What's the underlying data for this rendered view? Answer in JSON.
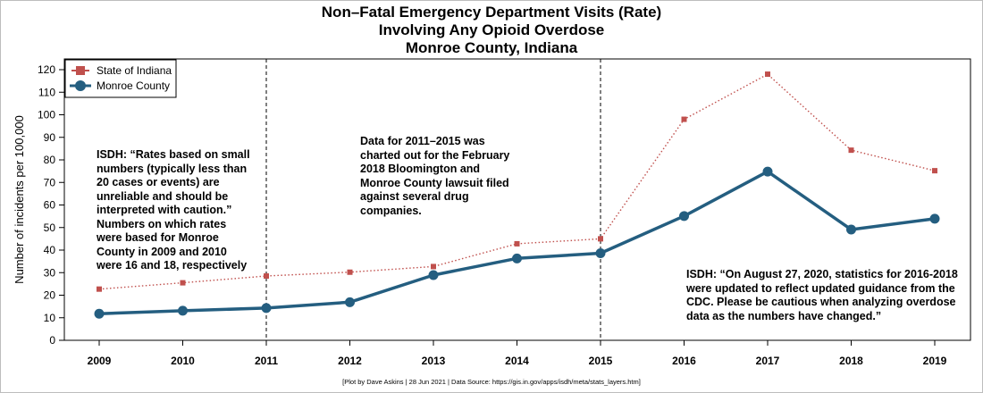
{
  "chart_data": {
    "type": "line",
    "title_lines": [
      "Non–Fatal Emergency Department Visits (Rate)",
      "Involving Any Opioid Overdose",
      "Monroe County, Indiana"
    ],
    "ylabel": "Number of incidents per 100,000",
    "xlabel": "",
    "x": [
      "2009",
      "2010",
      "2011",
      "2012",
      "2013",
      "2014",
      "2015",
      "2016",
      "2017",
      "2018",
      "2019"
    ],
    "ylim": [
      0,
      120
    ],
    "yticks": [
      0,
      10,
      20,
      30,
      40,
      50,
      60,
      70,
      80,
      90,
      100,
      110,
      120
    ],
    "grid": false,
    "legend_position": "top-left",
    "series": [
      {
        "name": "State of Indiana",
        "color": "#c0504d",
        "style": "dotted-square-markers",
        "values": [
          22.7,
          25.5,
          28.5,
          30.2,
          32.7,
          42.8,
          45.0,
          98.0,
          118.0,
          84.3,
          75.2
        ]
      },
      {
        "name": "Monroe County",
        "color": "#245e80",
        "style": "solid-circle-markers",
        "values": [
          11.8,
          13.1,
          14.3,
          16.9,
          28.9,
          36.3,
          38.6,
          55.1,
          74.8,
          49.1,
          53.9
        ]
      }
    ],
    "vertical_markers": [
      "2011",
      "2015"
    ],
    "annotations": [
      "ISDH: “Rates based on small\nnumbers (typically less than\n20 cases or events) are\nunreliable and should be\ninterpreted with caution.”\nNumbers on which rates\nwere based for Monroe\nCounty in 2009 and 2010\nwere 16 and 18, respectively",
      "Data for 2011–2015 was\ncharted out for the February\n2018 Bloomington and\nMonroe County lawsuit filed\nagainst several drug\ncompanies.",
      "ISDH: “On August 27, 2020, statistics for 2016-2018\nwere updated to reflect updated guidance from the\nCDC. Please be cautious when analyzing overdose\ndata as the numbers have changed.”"
    ],
    "footer": "[Plot by Dave Askins | 28 Jun 2021 | Data Source: https://gis.in.gov/apps/isdh/meta/stats_layers.htm]"
  }
}
